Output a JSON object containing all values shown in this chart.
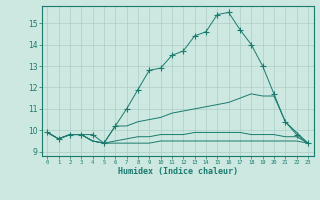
{
  "xlabel": "Humidex (Indice chaleur)",
  "background_color": "#cce8e0",
  "grid_color": "#aacfc8",
  "line_color": "#1a7a6e",
  "xlim": [
    -0.5,
    23.5
  ],
  "ylim": [
    8.8,
    15.8
  ],
  "yticks": [
    9,
    10,
    11,
    12,
    13,
    14,
    15
  ],
  "xticks": [
    0,
    1,
    2,
    3,
    4,
    5,
    6,
    7,
    8,
    9,
    10,
    11,
    12,
    13,
    14,
    15,
    16,
    17,
    18,
    19,
    20,
    21,
    22,
    23
  ],
  "lines": [
    {
      "x": [
        0,
        1,
        2,
        3,
        4,
        5,
        6,
        7,
        8,
        9,
        10,
        11,
        12,
        13,
        14,
        15,
        16,
        17,
        18,
        19,
        20,
        21,
        22,
        23
      ],
      "y": [
        9.9,
        9.6,
        9.8,
        9.8,
        9.8,
        9.4,
        10.2,
        11.0,
        11.9,
        12.8,
        12.9,
        13.5,
        13.7,
        14.4,
        14.6,
        15.4,
        15.5,
        14.7,
        14.0,
        13.0,
        11.7,
        10.4,
        9.8,
        9.4
      ],
      "marker": true
    },
    {
      "x": [
        0,
        1,
        2,
        3,
        4,
        5,
        6,
        7,
        8,
        9,
        10,
        11,
        12,
        13,
        14,
        15,
        16,
        17,
        18,
        19,
        20,
        21,
        22,
        23
      ],
      "y": [
        9.9,
        9.6,
        9.8,
        9.8,
        9.5,
        9.4,
        10.2,
        10.2,
        10.4,
        10.5,
        10.6,
        10.8,
        10.9,
        11.0,
        11.1,
        11.2,
        11.3,
        11.5,
        11.7,
        11.6,
        11.6,
        10.4,
        9.9,
        9.4
      ],
      "marker": false
    },
    {
      "x": [
        0,
        1,
        2,
        3,
        4,
        5,
        6,
        7,
        8,
        9,
        10,
        11,
        12,
        13,
        14,
        15,
        16,
        17,
        18,
        19,
        20,
        21,
        22,
        23
      ],
      "y": [
        9.9,
        9.6,
        9.8,
        9.8,
        9.5,
        9.4,
        9.5,
        9.6,
        9.7,
        9.7,
        9.8,
        9.8,
        9.8,
        9.9,
        9.9,
        9.9,
        9.9,
        9.9,
        9.8,
        9.8,
        9.8,
        9.7,
        9.7,
        9.4
      ],
      "marker": false
    },
    {
      "x": [
        0,
        1,
        2,
        3,
        4,
        5,
        6,
        7,
        8,
        9,
        10,
        11,
        12,
        13,
        14,
        15,
        16,
        17,
        18,
        19,
        20,
        21,
        22,
        23
      ],
      "y": [
        9.9,
        9.6,
        9.8,
        9.8,
        9.5,
        9.4,
        9.4,
        9.4,
        9.4,
        9.4,
        9.5,
        9.5,
        9.5,
        9.5,
        9.5,
        9.5,
        9.5,
        9.5,
        9.5,
        9.5,
        9.5,
        9.5,
        9.5,
        9.4
      ],
      "marker": false
    }
  ]
}
